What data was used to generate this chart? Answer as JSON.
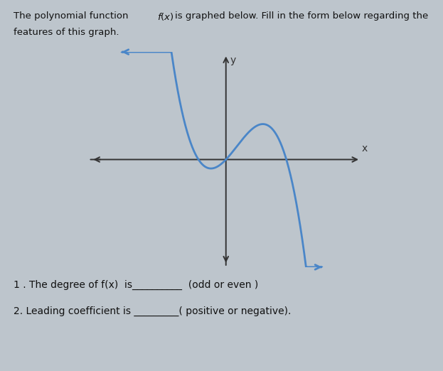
{
  "curve_color": "#4a86c8",
  "axis_color": "#333333",
  "background_color": "#bdc5cc",
  "xlim": [
    -5,
    5
  ],
  "ylim": [
    -4.5,
    4.5
  ],
  "x_label": "x",
  "y_label": "y",
  "curve_linewidth": 2.0,
  "axis_linewidth": 1.4,
  "text_color": "#111111",
  "top_line1": "The polynomial function ",
  "top_line1_math": "f(x)",
  "top_line1_rest": " is graphed below. Fill in the form below regarding the",
  "top_line2": "features of this graph.",
  "q1_part1": "1 . The degree of f(x)  is",
  "q1_blanks": "__________",
  "q1_part2": " (odd or even )",
  "q2_part1": "2. Leading coefficient is ",
  "q2_blanks": "________",
  "q2_part2": "( positive or negative)."
}
